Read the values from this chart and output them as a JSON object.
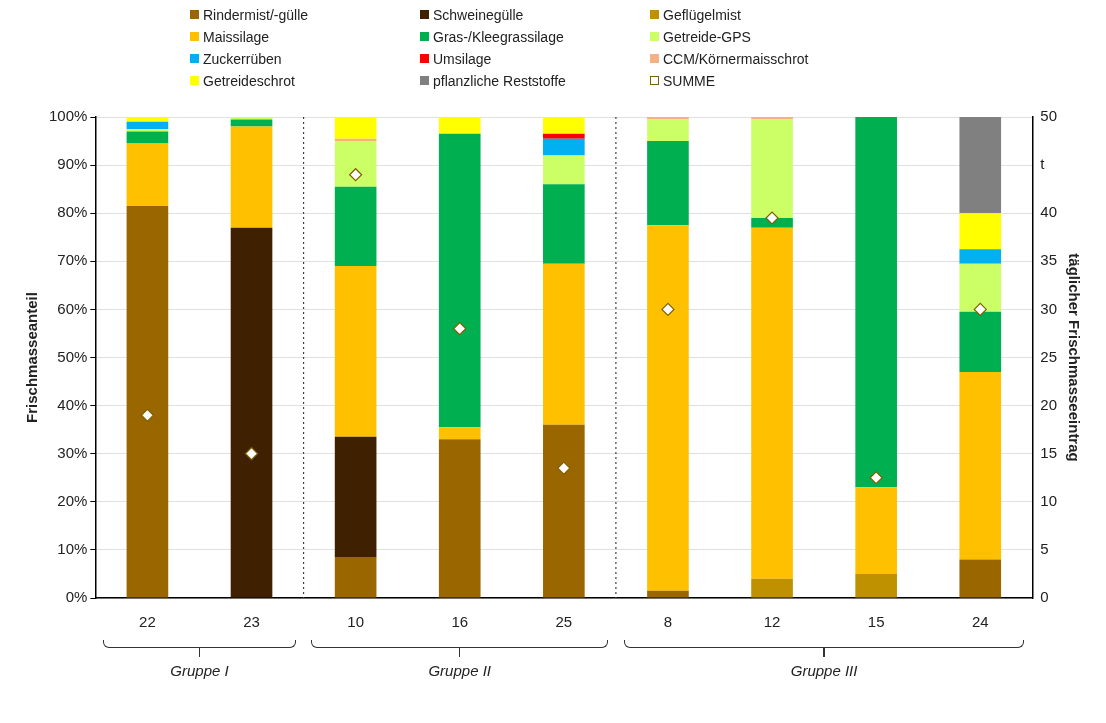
{
  "chart_data": {
    "type": "bar",
    "stacked": true,
    "ylabel": "Frischmasseanteil",
    "y2label": "täglicher Frischmasseeintrag",
    "categories": [
      "22",
      "23",
      "10",
      "16",
      "25",
      "8",
      "12",
      "15",
      "24"
    ],
    "series": [
      {
        "name": "Rindermist/-gülle",
        "color": "#996600",
        "values": [
          81.5,
          0,
          8.5,
          33,
          36,
          1.5,
          0,
          0,
          8
        ]
      },
      {
        "name": "Schweinegülle",
        "color": "#3f2000",
        "values": [
          0,
          77,
          25,
          0,
          0,
          0,
          0,
          0,
          0
        ]
      },
      {
        "name": "Geflügelmist",
        "color": "#bf9000",
        "values": [
          0,
          0,
          0,
          0,
          0,
          0,
          4,
          5,
          0
        ]
      },
      {
        "name": "Maissilage",
        "color": "#ffc000",
        "values": [
          13,
          21,
          35.5,
          2.5,
          33.5,
          76,
          73,
          18,
          39
        ]
      },
      {
        "name": "Gras-/Kleegrassilage",
        "color": "#00b050",
        "values": [
          2.5,
          1.5,
          16.5,
          61,
          16.5,
          17.5,
          2,
          77,
          12.5
        ]
      },
      {
        "name": "Getreide-GPS",
        "color": "#ccff66",
        "values": [
          0.5,
          0.5,
          9.5,
          0,
          6,
          4.5,
          20.5,
          0,
          10
        ]
      },
      {
        "name": "Zuckerrüben",
        "color": "#00b0f0",
        "values": [
          1.5,
          0,
          0,
          0,
          3.5,
          0,
          0,
          0,
          3
        ]
      },
      {
        "name": "Umsilage",
        "color": "#ff0000",
        "values": [
          0,
          0,
          0,
          0,
          1,
          0,
          0,
          0,
          0
        ]
      },
      {
        "name": "CCM/Körnermaisschrot",
        "color": "#f4b183",
        "values": [
          0,
          0,
          0.5,
          0,
          0,
          0.5,
          0.5,
          0,
          0
        ]
      },
      {
        "name": "Getreideschrot",
        "color": "#ffff00",
        "values": [
          1,
          0,
          4.5,
          3.5,
          3.5,
          0,
          0,
          0,
          7.5
        ]
      },
      {
        "name": "pflanzliche Reststoffe",
        "color": "#808080",
        "values": [
          0,
          0,
          0,
          0,
          0,
          0,
          0,
          0,
          20
        ]
      },
      {
        "name": "SUMME",
        "type": "scatter",
        "axis": "y2",
        "marker": "diamond",
        "color": "#ffffff",
        "x": [
          "22",
          "23",
          "10",
          "16",
          "25",
          "8",
          "12",
          "15",
          "24"
        ],
        "values": [
          19,
          15,
          44,
          28,
          13.5,
          30,
          39.5,
          12.5,
          30
        ]
      }
    ],
    "ylim": [
      0,
      100
    ],
    "yticks": [
      {
        "value": 0,
        "label": "0%"
      },
      {
        "value": 10,
        "label": "10%"
      },
      {
        "value": 20,
        "label": "20%"
      },
      {
        "value": 30,
        "label": "30%"
      },
      {
        "value": 40,
        "label": "40%"
      },
      {
        "value": 50,
        "label": "50%"
      },
      {
        "value": 60,
        "label": "60%"
      },
      {
        "value": 70,
        "label": "70%"
      },
      {
        "value": 80,
        "label": "80%"
      },
      {
        "value": 90,
        "label": "90%"
      },
      {
        "value": 100,
        "label": "100%"
      }
    ],
    "y2lim": [
      0,
      50
    ],
    "y2ticks": [
      0,
      5,
      10,
      15,
      20,
      25,
      30,
      35,
      40,
      {
        "value": 45,
        "label": "t"
      },
      50
    ],
    "annotations": [
      "Gruppe I",
      "Gruppe II",
      "Gruppe III"
    ],
    "grid": "y",
    "legend": "top"
  }
}
